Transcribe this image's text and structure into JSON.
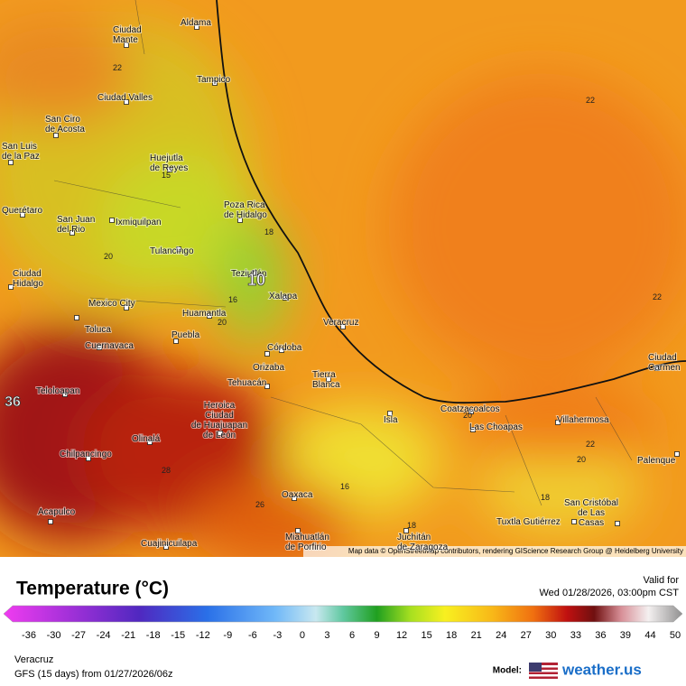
{
  "map": {
    "cities": [
      [
        "Aldama"
      ],
      [
        "Ciudad",
        "Mante"
      ],
      [
        "Tampico"
      ],
      [
        "Ciudad Valles"
      ],
      [
        "San Ciro",
        "de Acosta"
      ],
      [
        "San Luis",
        "de la Paz"
      ],
      [
        "Huejutla",
        "de Reyes"
      ],
      [
        "Poza Rica",
        "de Hidalgo"
      ],
      [
        "Querétaro"
      ],
      [
        "San Juan",
        "del Rio"
      ],
      [
        "Ixmiquilpan"
      ],
      [
        "Tulancingo"
      ],
      [
        "Ciudad",
        "Hidalgo"
      ],
      [
        "Teziutlán"
      ],
      [
        "Xalapa"
      ],
      [
        "Mexico City"
      ],
      [
        "Huamantla"
      ],
      [
        "Toluca"
      ],
      [
        "Veracruz"
      ],
      [
        "Puebla"
      ],
      [
        "Cuernavaca"
      ],
      [
        "Córdoba"
      ],
      [
        "Orizaba"
      ],
      [
        "Tierra",
        "Blanca"
      ],
      [
        "Tehuacán"
      ],
      [
        "Teloloapan"
      ],
      [
        "Heroica",
        "Ciudad",
        "de Huajuapan",
        "de León"
      ],
      [
        "Coatzacoalcos"
      ],
      [
        "Isla"
      ],
      [
        "Las Choapas"
      ],
      [
        "Villahermosa"
      ],
      [
        "Ciudad",
        "Carmen"
      ],
      [
        "Chilpancingo"
      ],
      [
        "Olinalá"
      ],
      [
        "Palenque"
      ],
      [
        "Oaxaca"
      ],
      [
        "San Cristóbal",
        "de Las",
        "Casas"
      ],
      [
        "Tuxtla Gutiérrez"
      ],
      [
        "Acapulco"
      ],
      [
        "Cuajinicuilapa"
      ],
      [
        "Miahuatlán",
        "de Porfirio"
      ],
      [
        "Juchitán",
        "de Zaragoza"
      ]
    ],
    "contour_labels": [
      "22",
      "22",
      "22",
      "18",
      "15",
      "20",
      "10",
      "16",
      "20",
      "36",
      "16",
      "18",
      "22",
      "20",
      "26",
      "18",
      "28",
      "20"
    ],
    "attribution": "Map data © OpenStreetMap contributors, rendering GIScience Research Group @ Heidelberg University"
  },
  "legend": {
    "title": "Temperature (°C)",
    "valid_label": "Valid for",
    "valid_time": "Wed 01/28/2026, 03:00pm CST",
    "ticks": [
      -36,
      -30,
      -27,
      -24,
      -21,
      -18,
      -15,
      -12,
      -9,
      -6,
      -3,
      0,
      3,
      6,
      9,
      12,
      15,
      18,
      21,
      24,
      27,
      30,
      33,
      36,
      39,
      44,
      50
    ],
    "location": "Veracruz",
    "run": "GFS (15 days) from  01/27/2026/06z",
    "model_label": "Model:",
    "brand": "weather.us"
  }
}
